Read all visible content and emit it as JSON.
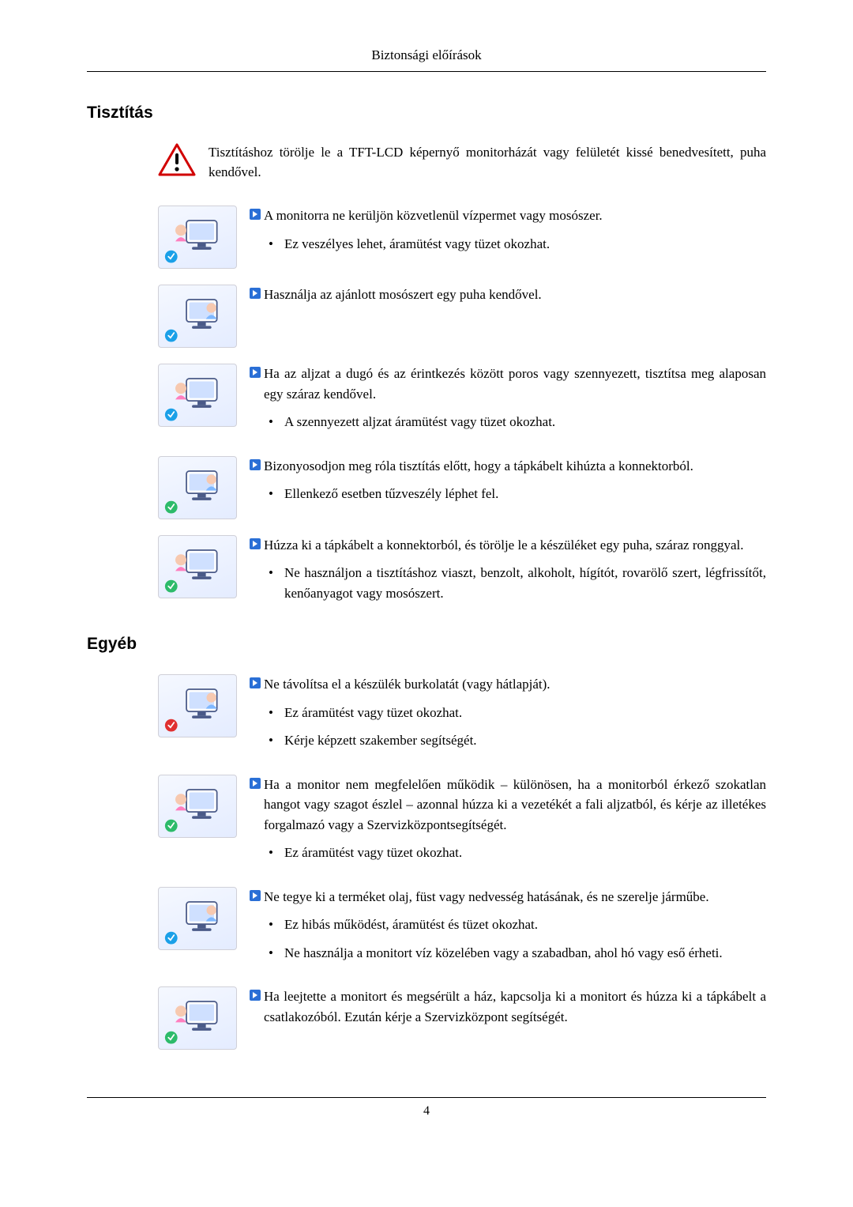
{
  "header": "Biztonsági előírások",
  "page_number": "4",
  "sections": [
    {
      "title": "Tisztítás",
      "intro": "Tisztításhoz törölje le a TFT-LCD képernyő monitorházát vagy felületét kissé benedvesített, puha kendővel.",
      "items": [
        {
          "lead": "A monitorra ne kerüljön közvetlenül vízpermet vagy mosószer.",
          "bullets": [
            "Ez veszélyes lehet, áramütést vagy tüzet okozhat."
          ]
        },
        {
          "lead": "Használja az ajánlott mosószert egy puha kendővel.",
          "bullets": []
        },
        {
          "lead": "Ha az aljzat a dugó és az érintkezés között poros vagy szennyezett, tisztítsa meg alaposan egy száraz kendővel.",
          "bullets": [
            "A szennyezett aljzat áramütést vagy tüzet okozhat."
          ]
        },
        {
          "lead": "Bizonyosodjon meg róla tisztítás előtt, hogy a tápkábelt kihúzta a konnektorból.",
          "bullets": [
            "Ellenkező esetben tűzveszély léphet fel."
          ]
        },
        {
          "lead": "Húzza ki a tápkábelt a konnektorból, és törölje le a készüléket egy puha, száraz ronggyal.",
          "bullets": [
            "Ne használjon a tisztításhoz viaszt, benzolt, alkoholt, hígítót, rovarölő szert, légfrissítőt, kenőanyagot vagy mosószert."
          ]
        }
      ]
    },
    {
      "title": "Egyéb",
      "intro": null,
      "items": [
        {
          "lead": "Ne távolítsa el a készülék burkolatát (vagy hátlapját).",
          "bullets": [
            "Ez áramütést vagy tüzet okozhat.",
            "Kérje képzett szakember segítségét."
          ]
        },
        {
          "lead": "Ha a monitor nem megfelelően működik – különösen, ha a monitorból érkező szokatlan hangot vagy szagot észlel – azonnal húzza ki a vezetékét a fali aljzatból, és kérje az illetékes forgalmazó vagy a Szervizközpontsegítségét.",
          "bullets": [
            "Ez áramütést vagy tüzet okozhat."
          ]
        },
        {
          "lead": "Ne tegye ki a terméket olaj, füst vagy nedvesség hatásának, és ne szerelje járműbe.",
          "bullets": [
            "Ez hibás működést, áramütést és tüzet okozhat.",
            "Ne használja a monitort víz közelében vagy a szabadban, ahol hó vagy eső érheti."
          ]
        },
        {
          "lead": "Ha leejtette a monitort és megsérült a ház, kapcsolja ki a monitort és húzza ki a tápkábelt a csatlakozóból. Ezután kérje a Szervizközpont segítségét.",
          "bullets": []
        }
      ]
    }
  ],
  "colors": {
    "arrow_bg": "#2a6fd6",
    "arrow_fg": "#ffffff",
    "warn_border": "#d10000",
    "warn_fill": "#ffffff",
    "warn_bang": "#000000",
    "thumb_tint": "#cfe0ff",
    "badge_blue": "#1aa0e8",
    "badge_red": "#e03030",
    "badge_green": "#2dbb6a"
  }
}
